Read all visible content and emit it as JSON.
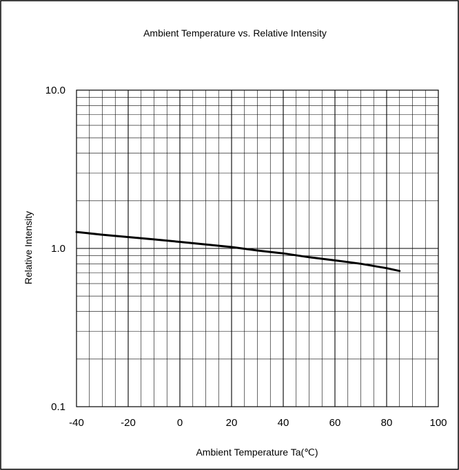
{
  "chart_data": {
    "type": "line",
    "title": "Ambient Temperature vs. Relative Intensity",
    "xlabel": "Ambient Temperature Ta(℃)",
    "ylabel": "Relative Intensity",
    "xlim": [
      -40,
      100
    ],
    "ylim": [
      0.1,
      10.0
    ],
    "yscale": "log",
    "grid": true,
    "x_ticks": [
      -40,
      -20,
      0,
      20,
      40,
      60,
      80,
      100
    ],
    "x_tick_labels": [
      "-40",
      "-20",
      "0",
      "20",
      "40",
      "60",
      "80",
      "100"
    ],
    "y_ticks": [
      0.1,
      1.0,
      10.0
    ],
    "y_tick_labels": [
      "0.1",
      "1.0",
      "10.0"
    ],
    "series": [
      {
        "x": [
          -40,
          -30,
          -20,
          -10,
          0,
          10,
          20,
          30,
          40,
          50,
          60,
          70,
          80,
          85
        ],
        "y": [
          1.27,
          1.22,
          1.18,
          1.14,
          1.1,
          1.06,
          1.02,
          0.97,
          0.93,
          0.88,
          0.84,
          0.8,
          0.75,
          0.72
        ]
      }
    ],
    "colors": {
      "line": "#000000",
      "grid": "#000000"
    }
  }
}
